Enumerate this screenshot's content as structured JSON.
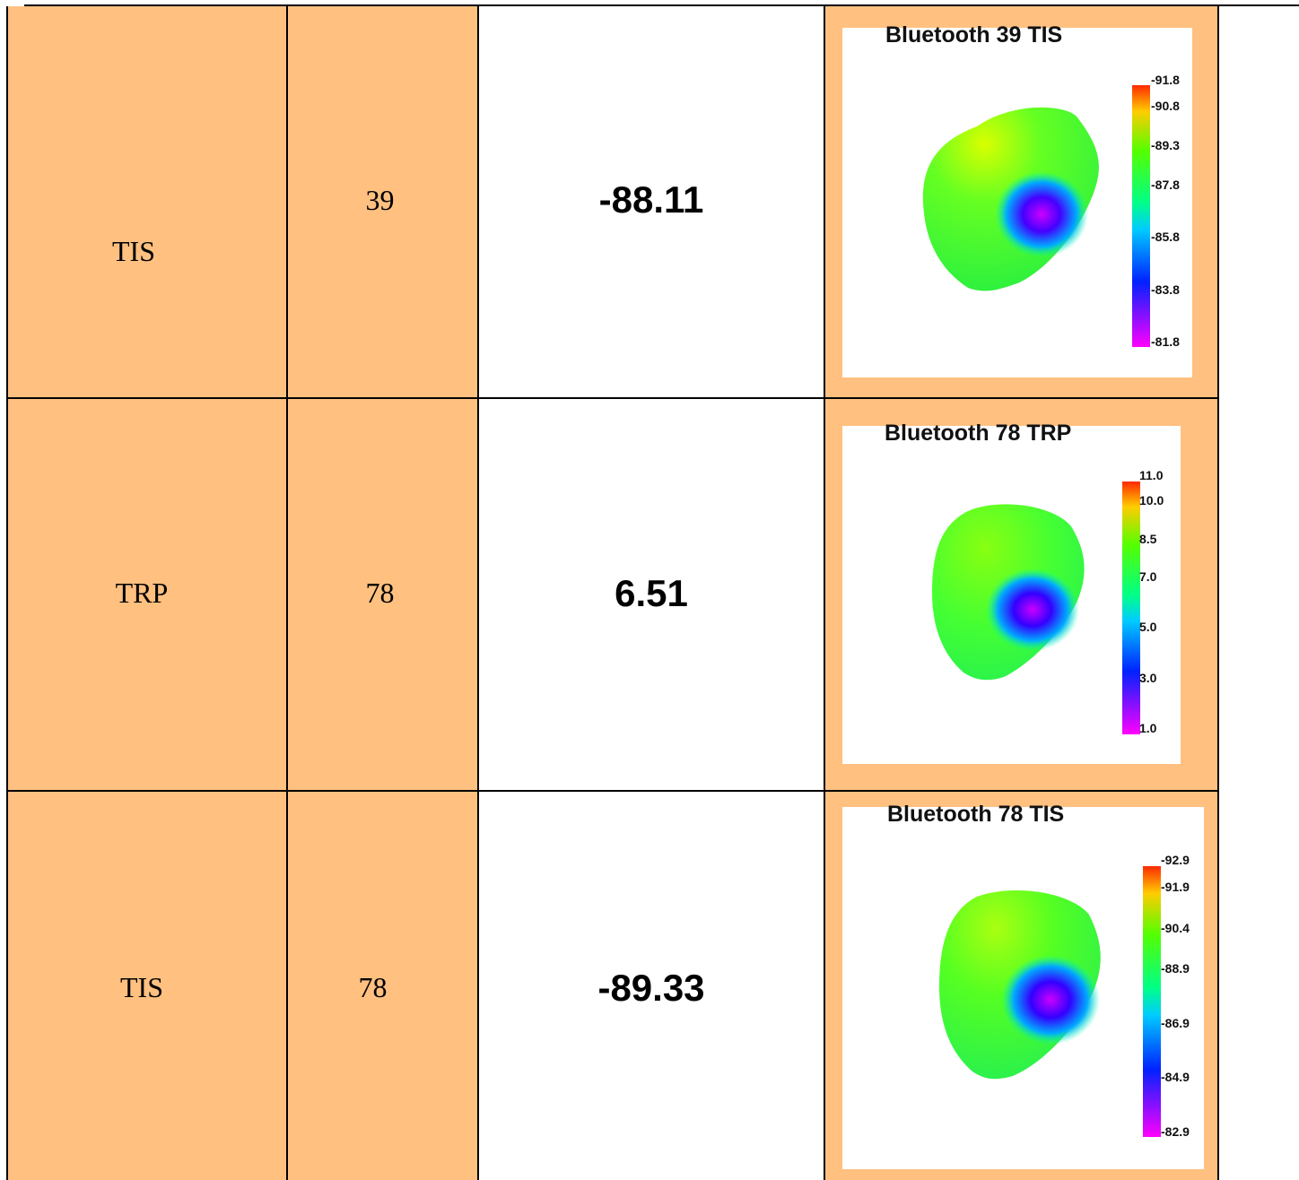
{
  "rows": [
    {
      "type": "TIS",
      "channel": "39",
      "value": "-88.11",
      "plot": {
        "title": "Bluetooth 39 TIS",
        "scale": [
          "-91.8",
          "-90.8",
          "-89.3",
          "-87.8",
          "-85.8",
          "-83.8",
          "-81.8"
        ]
      }
    },
    {
      "type": "TRP",
      "channel": "78",
      "value": "6.51",
      "plot": {
        "title": "Bluetooth 78 TRP",
        "scale": [
          "11.0",
          "10.0",
          "8.5",
          "7.0",
          "5.0",
          "3.0",
          "1.0"
        ]
      }
    },
    {
      "type": "TIS",
      "channel": "78",
      "value": "-89.33",
      "plot": {
        "title": "Bluetooth 78 TIS",
        "scale": [
          "-92.9",
          "-91.9",
          "-90.4",
          "-88.9",
          "-86.9",
          "-84.9",
          "-82.9"
        ]
      }
    }
  ]
}
